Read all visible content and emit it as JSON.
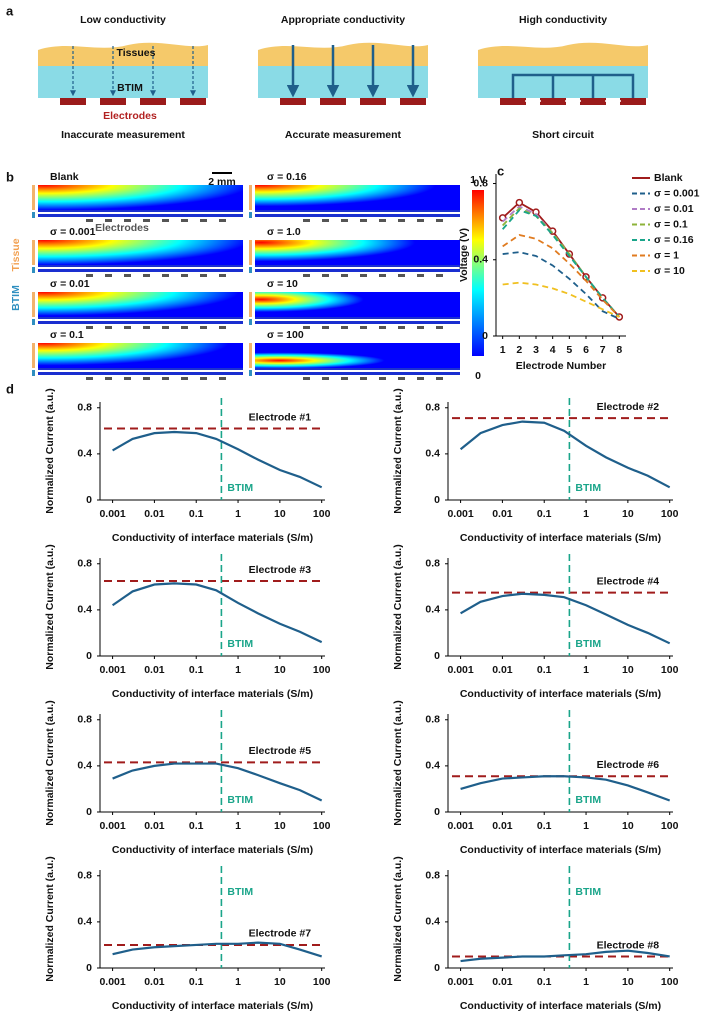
{
  "panel_labels": [
    "a",
    "b",
    "c",
    "d"
  ],
  "panel_a": {
    "scenarios": [
      {
        "title": "Low conductivity",
        "caption": "Inaccurate measurement"
      },
      {
        "title": "Appropriate conductivity",
        "caption": "Accurate measurement"
      },
      {
        "title": "High conductivity",
        "caption": "Short circuit"
      }
    ],
    "tissues_label": "Tissues",
    "btim_label": "BTIM",
    "electrodes_label": "Electrodes"
  },
  "panel_b": {
    "maps": [
      "Blank",
      "σ = 0.001",
      "σ = 0.01",
      "σ = 0.1",
      "σ = 0.16",
      "σ = 1.0",
      "σ = 10",
      "σ = 100"
    ],
    "scale_bar": "2 mm",
    "electrodes_label": "Electrodes",
    "side_labels": {
      "btim": "BTIM",
      "tissue": "Tissue"
    },
    "colorbar_max": "1 V",
    "colorbar_min": "0"
  },
  "chart_data": [
    {
      "type": "line",
      "x_label": "Electrode Number",
      "y_label": "Voltage (V)",
      "x": [
        1,
        2,
        3,
        4,
        5,
        6,
        7,
        8
      ],
      "xlim": [
        0.6,
        8.4
      ],
      "xticks": [
        1,
        2,
        3,
        4,
        5,
        6,
        7,
        8
      ],
      "ylim": [
        0,
        0.85
      ],
      "yticks": [
        0,
        0.4,
        0.8
      ],
      "legend": "right",
      "series": [
        {
          "name": "Blank",
          "color": "#a01c1c",
          "line_style": "solid",
          "marker": "circle",
          "values": [
            0.62,
            0.7,
            0.65,
            0.55,
            0.43,
            0.31,
            0.2,
            0.1
          ]
        },
        {
          "name": "σ = 0.001",
          "color": "#1f5f8b",
          "line_style": "dashed",
          "values": [
            0.43,
            0.44,
            0.42,
            0.37,
            0.3,
            0.22,
            0.13,
            0.09
          ]
        },
        {
          "name": "σ = 0.01",
          "color": "#b07cc6",
          "line_style": "dashed",
          "values": [
            0.6,
            0.68,
            0.64,
            0.54,
            0.43,
            0.31,
            0.2,
            0.1
          ]
        },
        {
          "name": "σ = 0.1",
          "color": "#8db33a",
          "line_style": "dashed",
          "values": [
            0.58,
            0.67,
            0.63,
            0.54,
            0.43,
            0.31,
            0.2,
            0.1
          ]
        },
        {
          "name": "σ = 0.16",
          "color": "#1aa58a",
          "line_style": "dashed",
          "values": [
            0.56,
            0.66,
            0.63,
            0.53,
            0.42,
            0.31,
            0.2,
            0.1
          ]
        },
        {
          "name": "σ = 1",
          "color": "#e07b20",
          "line_style": "dashed",
          "values": [
            0.47,
            0.53,
            0.51,
            0.46,
            0.38,
            0.29,
            0.19,
            0.1
          ]
        },
        {
          "name": "σ = 10",
          "color": "#f0c020",
          "line_style": "dashed",
          "values": [
            0.27,
            0.28,
            0.27,
            0.25,
            0.22,
            0.18,
            0.14,
            0.1
          ]
        }
      ]
    },
    {
      "type": "line",
      "log_x": true,
      "x_label": "Conductivity of interface materials (S/m)",
      "y_label": "Normalized Current (a.u.)",
      "x": [
        0.001,
        0.003,
        0.01,
        0.03,
        0.1,
        0.3,
        1,
        3,
        10,
        30,
        100
      ],
      "xlim": [
        0.0005,
        120
      ],
      "xticks": [
        0.001,
        0.01,
        0.1,
        1,
        10,
        100
      ],
      "ylim": [
        0,
        0.85
      ],
      "yticks": [
        0,
        0.4,
        0.8
      ],
      "annotation": "Electrode #1",
      "reference_line": {
        "value": 0.62,
        "color": "#a01c1c"
      },
      "vline": {
        "value": 0.4,
        "label": "BTIM",
        "color": "#1aa58a"
      },
      "series": [
        {
          "color": "#1f5f8b",
          "values": [
            0.43,
            0.53,
            0.58,
            0.59,
            0.58,
            0.53,
            0.44,
            0.35,
            0.26,
            0.2,
            0.11
          ]
        }
      ]
    },
    {
      "type": "line",
      "log_x": true,
      "x_label": "Conductivity of interface materials (S/m)",
      "y_label": "Normalized Current (a.u.)",
      "x": [
        0.001,
        0.003,
        0.01,
        0.03,
        0.1,
        0.3,
        1,
        3,
        10,
        30,
        100
      ],
      "xlim": [
        0.0005,
        120
      ],
      "xticks": [
        0.001,
        0.01,
        0.1,
        1,
        10,
        100
      ],
      "ylim": [
        0,
        0.85
      ],
      "yticks": [
        0,
        0.4,
        0.8
      ],
      "annotation": "Electrode #2",
      "reference_line": {
        "value": 0.71,
        "color": "#a01c1c"
      },
      "vline": {
        "value": 0.4,
        "label": "BTIM",
        "color": "#1aa58a"
      },
      "series": [
        {
          "color": "#1f5f8b",
          "values": [
            0.44,
            0.58,
            0.65,
            0.68,
            0.67,
            0.6,
            0.47,
            0.37,
            0.28,
            0.21,
            0.11
          ]
        }
      ]
    },
    {
      "type": "line",
      "log_x": true,
      "x_label": "Conductivity of interface materials (S/m)",
      "y_label": "Normalized Current (a.u.)",
      "x": [
        0.001,
        0.003,
        0.01,
        0.03,
        0.1,
        0.3,
        1,
        3,
        10,
        30,
        100
      ],
      "xlim": [
        0.0005,
        120
      ],
      "xticks": [
        0.001,
        0.01,
        0.1,
        1,
        10,
        100
      ],
      "ylim": [
        0,
        0.85
      ],
      "yticks": [
        0,
        0.4,
        0.8
      ],
      "annotation": "Electrode #3",
      "reference_line": {
        "value": 0.65,
        "color": "#a01c1c"
      },
      "vline": {
        "value": 0.4,
        "label": "BTIM",
        "color": "#1aa58a"
      },
      "series": [
        {
          "color": "#1f5f8b",
          "values": [
            0.44,
            0.56,
            0.62,
            0.63,
            0.62,
            0.57,
            0.46,
            0.37,
            0.28,
            0.21,
            0.12
          ]
        }
      ]
    },
    {
      "type": "line",
      "log_x": true,
      "x_label": "Conductivity of interface materials (S/m)",
      "y_label": "Normalized Current (a.u.)",
      "x": [
        0.001,
        0.003,
        0.01,
        0.03,
        0.1,
        0.3,
        1,
        3,
        10,
        30,
        100
      ],
      "xlim": [
        0.0005,
        120
      ],
      "xticks": [
        0.001,
        0.01,
        0.1,
        1,
        10,
        100
      ],
      "ylim": [
        0,
        0.85
      ],
      "yticks": [
        0,
        0.4,
        0.8
      ],
      "annotation": "Electrode #4",
      "reference_line": {
        "value": 0.55,
        "color": "#a01c1c"
      },
      "vline": {
        "value": 0.4,
        "label": "BTIM",
        "color": "#1aa58a"
      },
      "series": [
        {
          "color": "#1f5f8b",
          "values": [
            0.37,
            0.47,
            0.52,
            0.54,
            0.53,
            0.51,
            0.44,
            0.36,
            0.27,
            0.2,
            0.11
          ]
        }
      ]
    },
    {
      "type": "line",
      "log_x": true,
      "x_label": "Conductivity of interface materials (S/m)",
      "y_label": "Normalized Current (a.u.)",
      "x": [
        0.001,
        0.003,
        0.01,
        0.03,
        0.1,
        0.3,
        1,
        3,
        10,
        30,
        100
      ],
      "xlim": [
        0.0005,
        120
      ],
      "xticks": [
        0.001,
        0.01,
        0.1,
        1,
        10,
        100
      ],
      "ylim": [
        0,
        0.85
      ],
      "yticks": [
        0,
        0.4,
        0.8
      ],
      "annotation": "Electrode #5",
      "reference_line": {
        "value": 0.43,
        "color": "#a01c1c"
      },
      "vline": {
        "value": 0.4,
        "label": "BTIM",
        "color": "#1aa58a"
      },
      "series": [
        {
          "color": "#1f5f8b",
          "values": [
            0.29,
            0.36,
            0.4,
            0.42,
            0.42,
            0.42,
            0.38,
            0.32,
            0.25,
            0.19,
            0.1
          ]
        }
      ]
    },
    {
      "type": "line",
      "log_x": true,
      "x_label": "Conductivity of interface materials (S/m)",
      "y_label": "Normalized Current (a.u.)",
      "x": [
        0.001,
        0.003,
        0.01,
        0.03,
        0.1,
        0.3,
        1,
        3,
        10,
        30,
        100
      ],
      "xlim": [
        0.0005,
        120
      ],
      "xticks": [
        0.001,
        0.01,
        0.1,
        1,
        10,
        100
      ],
      "ylim": [
        0,
        0.85
      ],
      "yticks": [
        0,
        0.4,
        0.8
      ],
      "annotation": "Electrode #6",
      "reference_line": {
        "value": 0.31,
        "color": "#a01c1c"
      },
      "vline": {
        "value": 0.4,
        "label": "BTIM",
        "color": "#1aa58a"
      },
      "series": [
        {
          "color": "#1f5f8b",
          "values": [
            0.2,
            0.25,
            0.29,
            0.3,
            0.31,
            0.31,
            0.3,
            0.28,
            0.23,
            0.17,
            0.1
          ]
        }
      ]
    },
    {
      "type": "line",
      "log_x": true,
      "x_label": "Conductivity of interface materials (S/m)",
      "y_label": "Normalized Current (a.u.)",
      "x": [
        0.001,
        0.003,
        0.01,
        0.03,
        0.1,
        0.3,
        1,
        3,
        10,
        30,
        100
      ],
      "xlim": [
        0.0005,
        120
      ],
      "xticks": [
        0.001,
        0.01,
        0.1,
        1,
        10,
        100
      ],
      "ylim": [
        0,
        0.85
      ],
      "yticks": [
        0,
        0.4,
        0.8
      ],
      "annotation": "Electrode #7",
      "reference_line": {
        "value": 0.2,
        "color": "#a01c1c"
      },
      "vline": {
        "value": 0.4,
        "label": "BTIM",
        "color": "#1aa58a"
      },
      "series": [
        {
          "color": "#1f5f8b",
          "values": [
            0.12,
            0.16,
            0.18,
            0.19,
            0.2,
            0.21,
            0.21,
            0.22,
            0.21,
            0.16,
            0.1
          ]
        }
      ]
    },
    {
      "type": "line",
      "log_x": true,
      "x_label": "Conductivity of interface materials (S/m)",
      "y_label": "Normalized Current (a.u.)",
      "x": [
        0.001,
        0.003,
        0.01,
        0.03,
        0.1,
        0.3,
        1,
        3,
        10,
        30,
        100
      ],
      "xlim": [
        0.0005,
        120
      ],
      "xticks": [
        0.001,
        0.01,
        0.1,
        1,
        10,
        100
      ],
      "ylim": [
        0,
        0.85
      ],
      "yticks": [
        0,
        0.4,
        0.8
      ],
      "annotation": "Electrode #8",
      "reference_line": {
        "value": 0.1,
        "color": "#a01c1c"
      },
      "vline": {
        "value": 0.4,
        "label": "BTIM",
        "color": "#1aa58a"
      },
      "series": [
        {
          "color": "#1f5f8b",
          "values": [
            0.06,
            0.08,
            0.09,
            0.1,
            0.1,
            0.11,
            0.12,
            0.14,
            0.15,
            0.13,
            0.1
          ]
        }
      ]
    }
  ]
}
